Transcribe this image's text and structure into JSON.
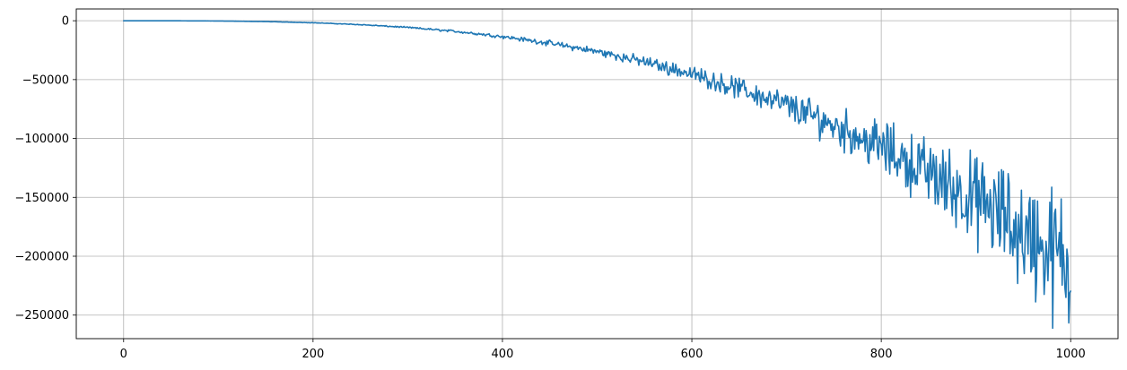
{
  "chart_data": {
    "type": "line",
    "title": "",
    "xlabel": "",
    "ylabel": "",
    "xlim": [
      -50,
      1050
    ],
    "ylim": [
      -270000,
      10000
    ],
    "grid": true,
    "legend": "none",
    "x_ticks": [
      0,
      200,
      400,
      600,
      800,
      1000
    ],
    "x_tick_labels": [
      "0",
      "200",
      "400",
      "600",
      "800",
      "1000"
    ],
    "y_ticks": [
      0,
      -50000,
      -100000,
      -150000,
      -200000,
      -250000
    ],
    "y_tick_labels": [
      "0",
      "−50000",
      "−100000",
      "−150000",
      "−200000",
      "−250000"
    ],
    "series": [
      {
        "color": "#1f77b4",
        "trend": "approximately y = -0.00021 * x^3 with noise growing with x",
        "x": [
          0,
          50,
          100,
          150,
          200,
          250,
          300,
          350,
          400,
          450,
          500,
          550,
          600,
          650,
          700,
          750,
          800,
          850,
          900,
          950,
          1000
        ],
        "y": [
          0,
          -30,
          -210,
          -700,
          -1700,
          -3300,
          -5700,
          -9000,
          -13400,
          -19100,
          -26200,
          -34900,
          -45300,
          -57600,
          -72000,
          -88600,
          -107500,
          -129000,
          -153000,
          -180000,
          -210000
        ]
      }
    ]
  }
}
